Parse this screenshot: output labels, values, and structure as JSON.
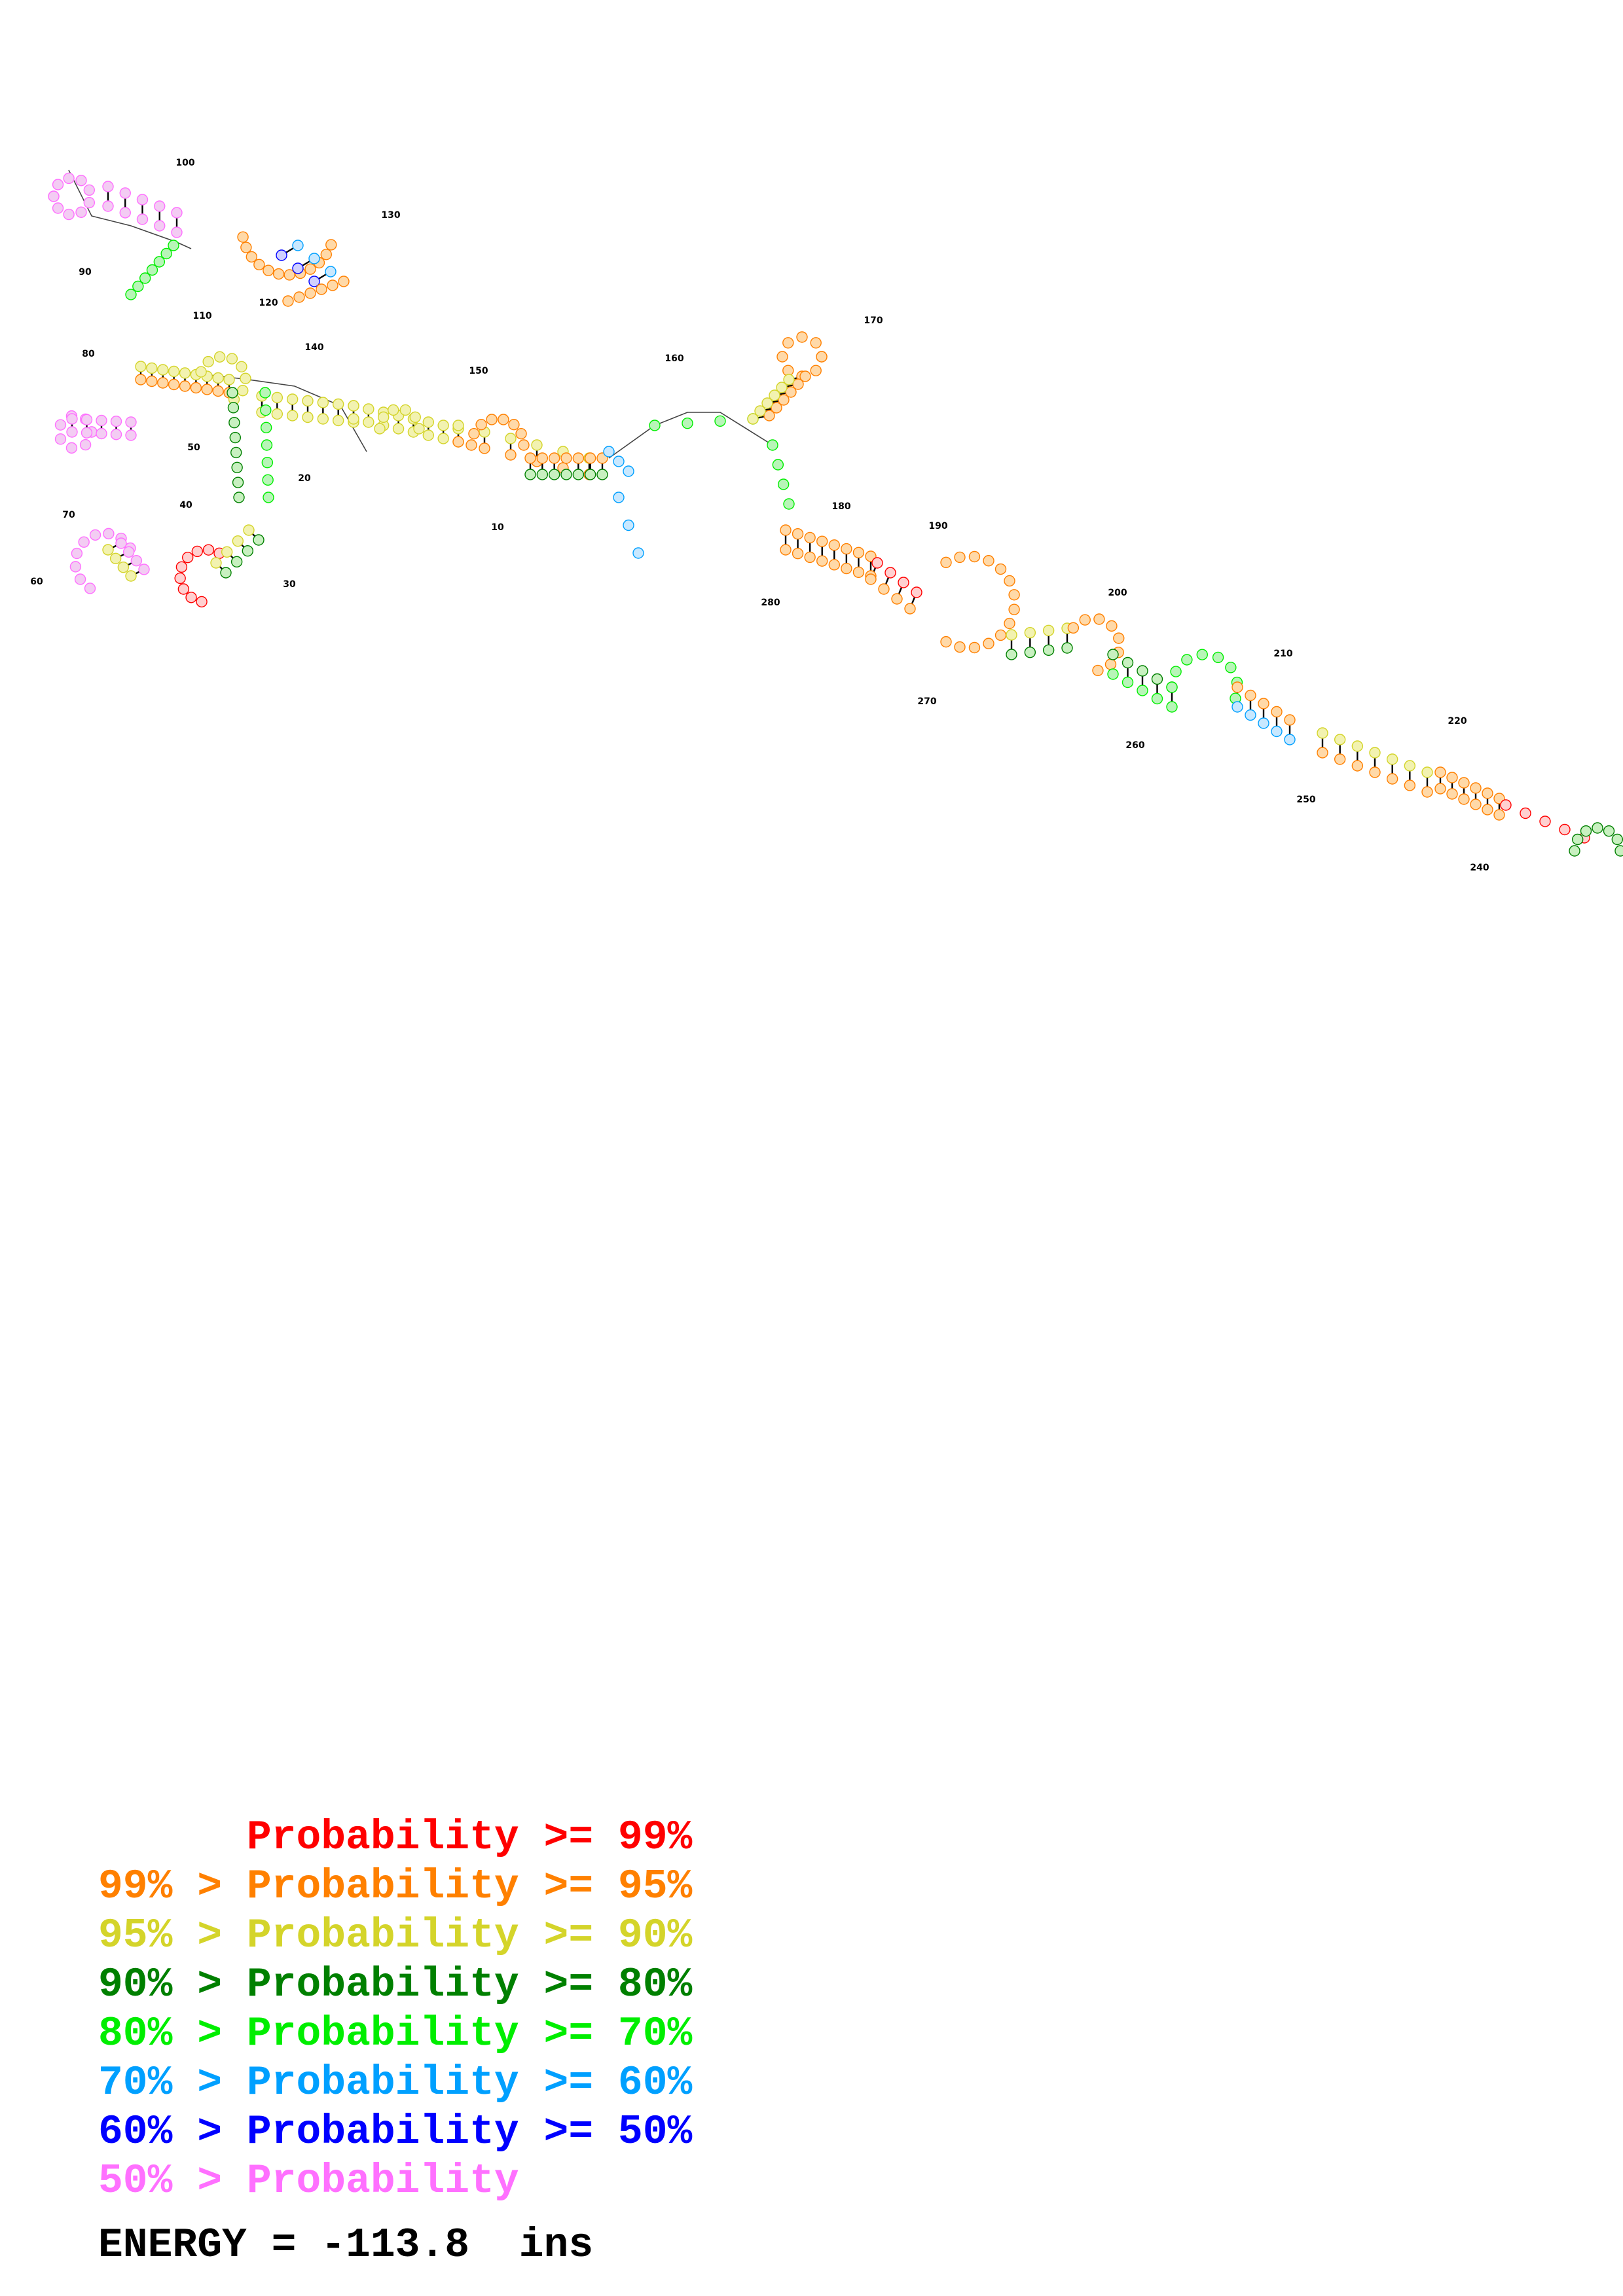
{
  "colors": {
    "p99": "#ff0000",
    "p95": "#ff8000",
    "p90": "#d4d42a",
    "p80": "#008000",
    "p70": "#00ee00",
    "p60": "#00a0ff",
    "p50": "#0000ff",
    "plow": "#ff70ff"
  },
  "legend": [
    {
      "prefix": "",
      "mid": "Probability",
      "suffix": ">= 99%",
      "color_key": "p99"
    },
    {
      "prefix": "99% > ",
      "mid": "Probability",
      "suffix": ">= 95%",
      "color_key": "p95"
    },
    {
      "prefix": "95% > ",
      "mid": "Probability",
      "suffix": ">= 90%",
      "color_key": "p90"
    },
    {
      "prefix": "90% > ",
      "mid": "Probability",
      "suffix": ">= 80%",
      "color_key": "p80"
    },
    {
      "prefix": "80% > ",
      "mid": "Probability",
      "suffix": ">= 70%",
      "color_key": "p70"
    },
    {
      "prefix": "70% > ",
      "mid": "Probability",
      "suffix": ">= 60%",
      "color_key": "p60"
    },
    {
      "prefix": "60% > ",
      "mid": "Probability",
      "suffix": ">= 50%",
      "color_key": "p50"
    },
    {
      "prefix": "50% > ",
      "mid": "Probability",
      "suffix": "",
      "color_key": "plow"
    }
  ],
  "energy_label": "ENERGY = -113.8  ins",
  "position_labels": [
    "10",
    "20",
    "30",
    "40",
    "50",
    "60",
    "70",
    "80",
    "90",
    "100",
    "110",
    "120",
    "130",
    "140",
    "150",
    "160",
    "170",
    "180",
    "190",
    "200",
    "210",
    "220",
    "240",
    "250",
    "260",
    "270",
    "280"
  ]
}
